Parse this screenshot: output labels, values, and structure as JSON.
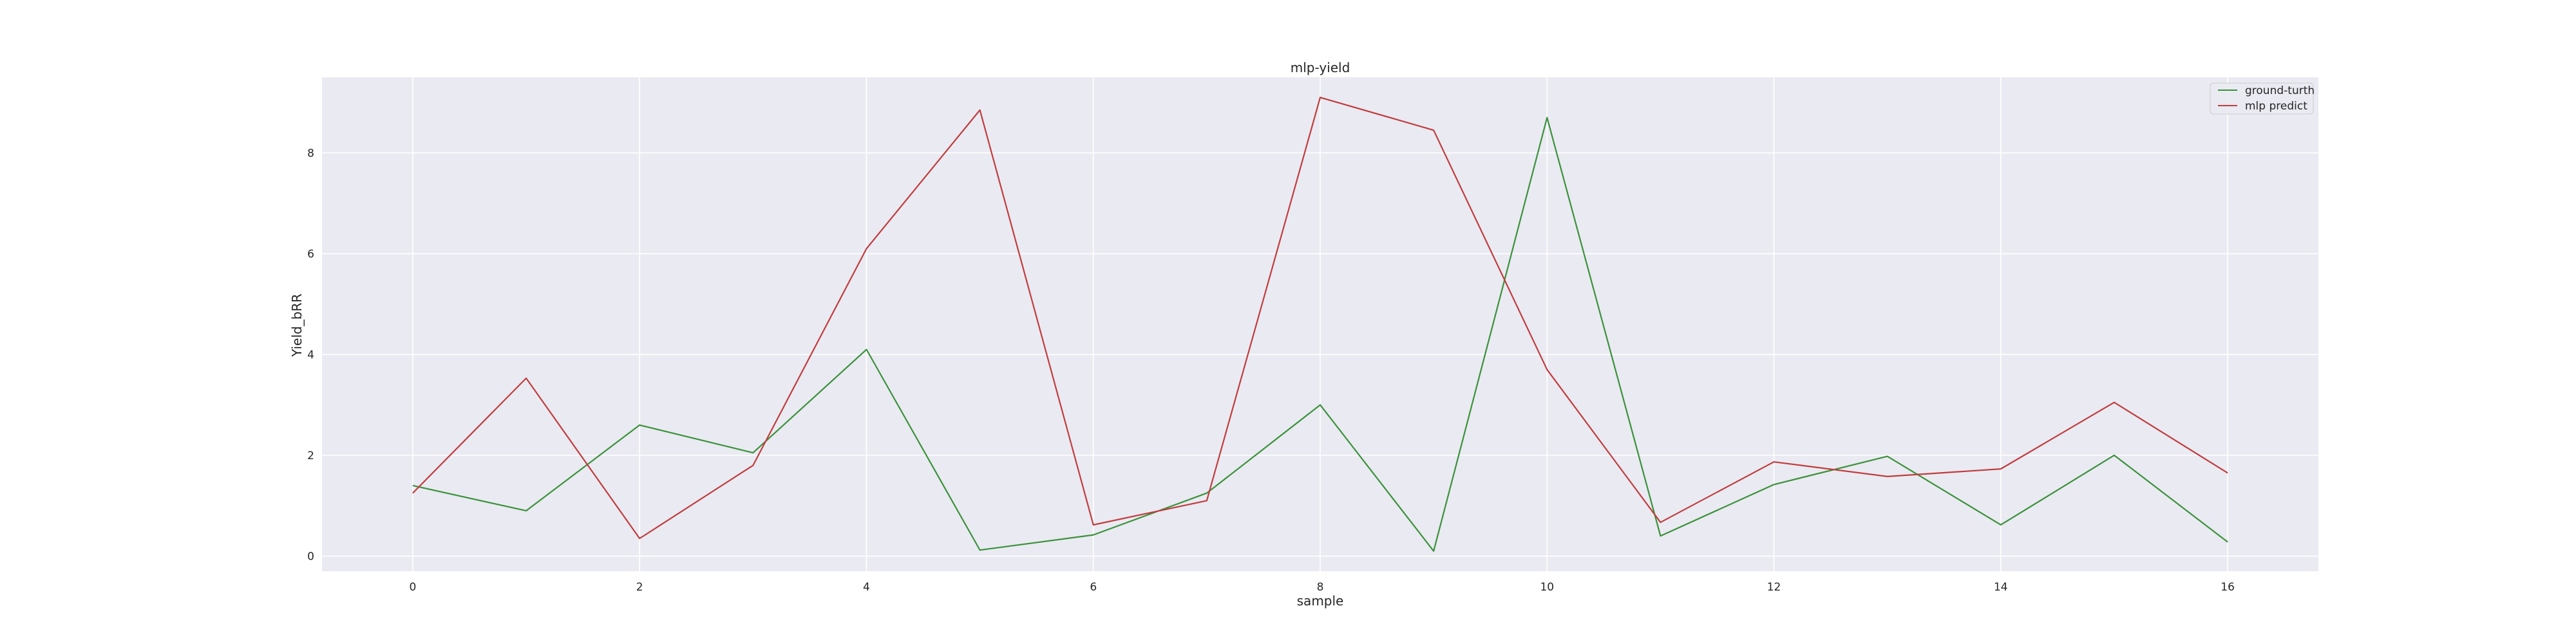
{
  "chart_data": {
    "type": "line",
    "title": "mlp-yield",
    "xlabel": "sample",
    "ylabel": "Yield_bRR",
    "xlim": [
      -0.8,
      16.8
    ],
    "ylim": [
      -0.3,
      9.5
    ],
    "xticks": [
      0,
      2,
      4,
      6,
      8,
      10,
      12,
      14,
      16
    ],
    "yticks": [
      0,
      2,
      4,
      6,
      8
    ],
    "grid": true,
    "background": "#eaeaf2",
    "legend_placement": "top-right",
    "x": [
      0,
      1,
      2,
      3,
      4,
      5,
      6,
      7,
      8,
      9,
      10,
      11,
      12,
      13,
      14,
      15,
      16
    ],
    "series": [
      {
        "name": "ground-turth",
        "color": "#3a923a",
        "values": [
          1.4,
          0.9,
          2.6,
          2.05,
          4.1,
          0.12,
          0.42,
          1.25,
          3.0,
          0.1,
          8.7,
          0.4,
          1.42,
          1.98,
          0.62,
          2.0,
          0.28
        ]
      },
      {
        "name": "mlp predict",
        "color": "#c03d3e",
        "values": [
          1.25,
          3.53,
          0.35,
          1.8,
          6.1,
          8.85,
          0.62,
          1.1,
          9.1,
          8.45,
          3.7,
          0.67,
          1.87,
          1.58,
          1.73,
          3.05,
          1.65
        ]
      }
    ]
  }
}
